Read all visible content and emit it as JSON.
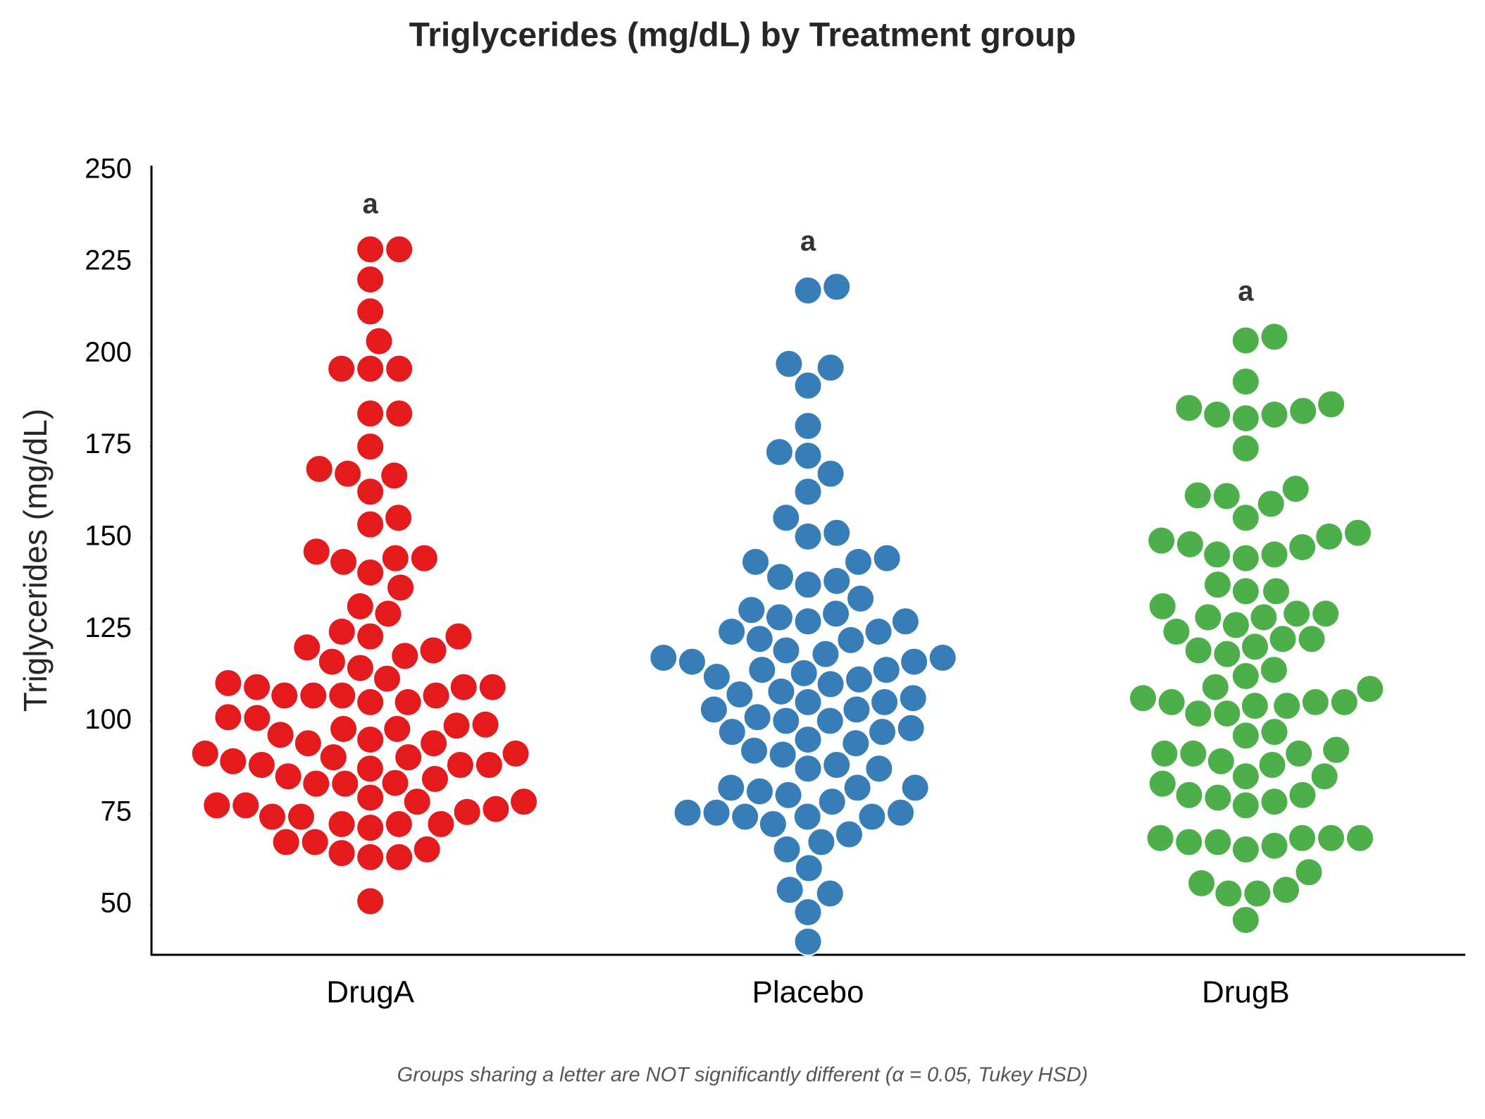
{
  "chart_data": {
    "type": "swarm",
    "title": "Triglycerides (mg/dL) by Treatment group",
    "y_label": "Triglycerides (mg/dL)",
    "footnote": "Groups sharing a letter are NOT significantly different (α = 0.05, Tukey HSD)",
    "ylim": [
      36.4,
      251.3
    ],
    "yticks": [
      50,
      75,
      100,
      125,
      150,
      175,
      200,
      225,
      250
    ],
    "grid": false,
    "groups": [
      {
        "name": "DrugA",
        "color": "#e41a1c",
        "letter": "a",
        "values": [
          228.5,
          228.5,
          220.3,
          211.6,
          203.5,
          196.0,
          196.0,
          196.0,
          183.8,
          183.8,
          174.8,
          166.9,
          162.5,
          167.4,
          168.7,
          155.4,
          153.6,
          144.4,
          143.4,
          140.5,
          144.4,
          146.2,
          136.4,
          129.3,
          131.3,
          123.1,
          123.1,
          124.4,
          117.8,
          116.2,
          120.1,
          119.3,
          114.5,
          111.6,
          110.4,
          109.3,
          109.3,
          109.3,
          107.0,
          107.0,
          107.0,
          107.0,
          105.2,
          105.2,
          101.1,
          100.9,
          97.9,
          97.9,
          98.8,
          99.1,
          96.3,
          95.0,
          94.0,
          94.0,
          91.2,
          91.2,
          89.1,
          88.1,
          90.2,
          90.2,
          88.1,
          87.1,
          88.1,
          85.0,
          84.3,
          83.0,
          83.2,
          83.0,
          77.1,
          77.1,
          78.1,
          79.2,
          78.1,
          74.0,
          75.3,
          76.1,
          74.0,
          72.0,
          72.0,
          72.0,
          71.0,
          65.1,
          67.1,
          67.1,
          64.1,
          63.0,
          63.0,
          51.0
        ]
      },
      {
        "name": "Placebo",
        "color": "#377eb8",
        "letter": "a",
        "values": [
          218.3,
          217.3,
          196.3,
          197.3,
          191.4,
          180.4,
          172.3,
          173.3,
          167.4,
          162.5,
          155.4,
          150.3,
          151.3,
          143.4,
          143.4,
          144.4,
          138.2,
          137.2,
          139.3,
          133.4,
          130.3,
          127.2,
          128.3,
          127.2,
          129.3,
          124.4,
          124.4,
          122.4,
          122.1,
          117.3,
          117.3,
          118.3,
          119.3,
          116.2,
          116.2,
          114.0,
          113.1,
          112.1,
          114.0,
          111.4,
          110.1,
          108.1,
          107.3,
          106.3,
          105.2,
          105.2,
          103.2,
          103.2,
          101.1,
          100.1,
          100.1,
          97.1,
          97.1,
          98.1,
          95.0,
          94.0,
          90.9,
          92.0,
          88.1,
          87.1,
          87.1,
          81.9,
          80.9,
          81.9,
          81.9,
          79.9,
          78.1,
          75.1,
          74.0,
          75.1,
          74.0,
          74.0,
          75.1,
          72.0,
          69.2,
          67.1,
          65.1,
          60.0,
          54.1,
          53.1,
          48.0,
          40.0
        ]
      },
      {
        "name": "DrugB",
        "color": "#4daf4a",
        "letter": "a",
        "values": [
          204.7,
          203.7,
          192.5,
          185.3,
          183.5,
          182.5,
          183.5,
          184.5,
          186.3,
          174.3,
          161.5,
          163.3,
          159.2,
          161.3,
          155.4,
          151.3,
          149.2,
          147.4,
          145.4,
          144.4,
          145.4,
          148.2,
          150.3,
          137.2,
          135.4,
          135.4,
          131.3,
          128.3,
          128.3,
          129.3,
          129.3,
          124.4,
          122.4,
          122.4,
          126.2,
          119.3,
          118.3,
          120.3,
          114.0,
          112.3,
          109.3,
          108.8,
          106.3,
          105.2,
          104.2,
          105.2,
          105.2,
          104.2,
          102.1,
          102.1,
          97.1,
          96.1,
          91.2,
          91.2,
          91.2,
          92.2,
          89.1,
          88.1,
          85.0,
          85.0,
          83.0,
          79.9,
          79.2,
          79.9,
          78.1,
          77.1,
          68.2,
          68.2,
          67.1,
          67.1,
          65.1,
          66.1,
          68.2,
          68.2,
          58.9,
          54.1,
          53.1,
          53.1,
          55.9,
          45.9
        ]
      }
    ]
  }
}
